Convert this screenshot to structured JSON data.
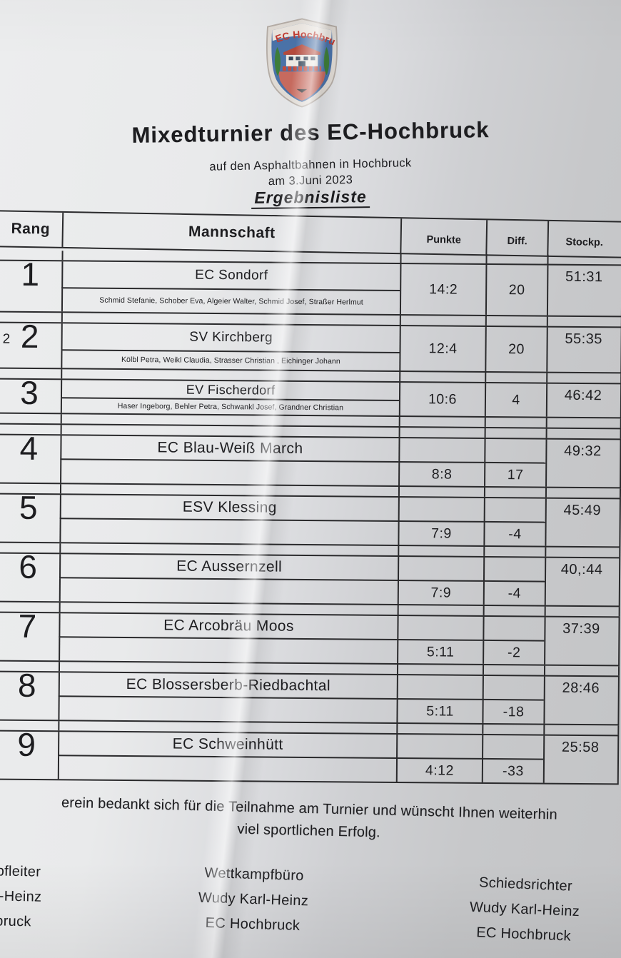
{
  "colors": {
    "ink": "#1d1d20",
    "table_line": "#2a2a2c",
    "logo_red": "#c0392f",
    "logo_blue": "#4a72a8",
    "logo_green": "#3e7d3a",
    "logo_salmon": "#c66a5e"
  },
  "logo": {
    "club_name": "EC Hochbruck"
  },
  "header": {
    "title": "Mixedturnier des EC-Hochbruck",
    "subtitle_line1": "auf den Asphaltbahnen in Hochbruck",
    "subtitle_line2": "am 3.Juni 2023",
    "list_heading": "Ergebnisliste"
  },
  "table": {
    "columns": [
      "Rang",
      "Mannschaft",
      "Punkte",
      "Diff.",
      "Stockp."
    ],
    "rows": [
      {
        "rank": "1",
        "team": "EC Sondorf",
        "players": "Schmid Stefanie, Schober Eva, Algeier Walter, Schmid Josef, Straßer Herlmut",
        "punkte": "14:2",
        "diff": "20",
        "stockp": "51:31"
      },
      {
        "rank": "2",
        "rank_prefix": "2",
        "team": "SV Kirchberg",
        "players": "Kölbl Petra, Weikl Claudia, Strasser Christian , Eichinger Johann",
        "punkte": "12:4",
        "diff": "20",
        "stockp": "55:35"
      },
      {
        "rank": "3",
        "team": "EV Fischerdorf",
        "players": "Haser Ingeborg, Behler Petra, Schwankl Josef, Grandner Christian",
        "punkte": "10:6",
        "diff": "4",
        "stockp": "46:42"
      },
      {
        "rank": "4",
        "team": "EC Blau-Weiß March",
        "punkte": "8:8",
        "diff": "17",
        "stockp": "49:32"
      },
      {
        "rank": "5",
        "team": "ESV Klessing",
        "punkte": "7:9",
        "diff": "-4",
        "stockp": "45:49"
      },
      {
        "rank": "6",
        "team": "EC Aussernzell",
        "punkte": "7:9",
        "diff": "-4",
        "stockp": "40,:44"
      },
      {
        "rank": "7",
        "team": "EC Arcobräu Moos",
        "punkte": "5:11",
        "diff": "-2",
        "stockp": "37:39"
      },
      {
        "rank": "8",
        "team": "EC Blossersberb-Riedbachtal",
        "punkte": "5:11",
        "diff": "-18",
        "stockp": "28:46"
      },
      {
        "rank": "9",
        "team": "EC Schweinhütt",
        "punkte": "4:12",
        "diff": "-33",
        "stockp": "25:58"
      }
    ]
  },
  "footer": {
    "thanks_line1": "erein bedankt sich für die Teilnahme am Turnier und wünscht Ihnen weiterhin",
    "thanks_line2": "viel sportlichen Erfolg.",
    "signatures": [
      {
        "lines": [
          "pfleiter",
          "l-Heinz",
          "bruck"
        ]
      },
      {
        "lines": [
          "Wettkampfbüro",
          "Wudy Karl-Heinz",
          "EC Hochbruck"
        ]
      },
      {
        "lines": [
          "Schiedsrichter",
          "Wudy Karl-Heinz",
          "EC Hochbruck"
        ]
      }
    ]
  }
}
